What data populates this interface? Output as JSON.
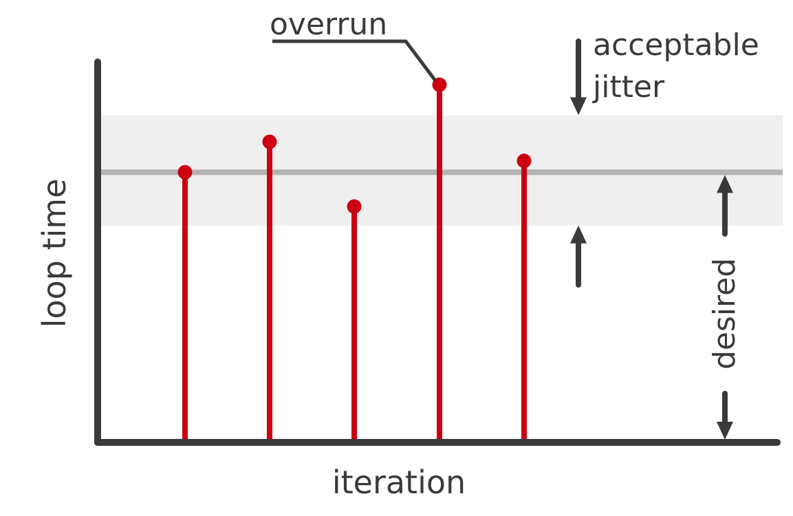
{
  "chart_data": {
    "type": "stem",
    "xlabel": "iteration",
    "ylabel": "loop time",
    "x": [
      1,
      2,
      3,
      4,
      5
    ],
    "values": [
      0.71,
      0.79,
      0.62,
      0.94,
      0.74
    ],
    "ylim": [
      0,
      1
    ],
    "desired": 0.71,
    "jitter_band": [
      0.57,
      0.86
    ],
    "stem_color": "#cc0011",
    "axis_color": "#3a3a3a",
    "band_color": "#efefef",
    "desired_line_color": "#b3b3b3",
    "annotations": {
      "overrun": "overrun",
      "acceptable": "acceptable",
      "jitter": "jitter",
      "desired": "desired"
    }
  }
}
